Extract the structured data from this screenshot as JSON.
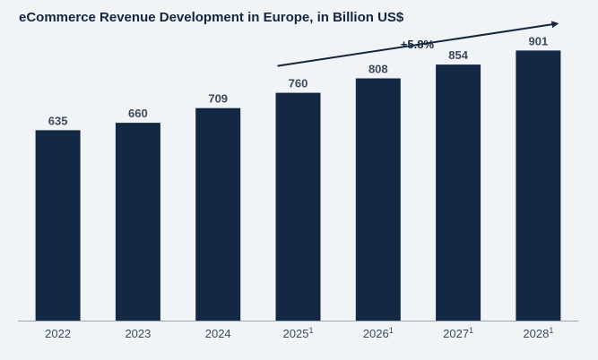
{
  "title": "eCommerce Revenue Development in Europe, in Billion US$",
  "colors": {
    "bar": "#132842",
    "text": "#3b4a5c",
    "background": "#f1f4f7"
  },
  "chart_data": {
    "type": "bar",
    "title": "eCommerce Revenue Development in Europe, in Billion US$",
    "categories": [
      "2022",
      "2023",
      "2024",
      "2025",
      "2026",
      "2027",
      "2028"
    ],
    "footnote_marks": [
      "",
      "",
      "",
      "1",
      "1",
      "1",
      "1"
    ],
    "values": [
      635,
      660,
      709,
      760,
      808,
      854,
      901
    ],
    "value_labels": [
      "635",
      "660",
      "709",
      "760",
      "808",
      "854",
      "901"
    ],
    "ylim": [
      0,
      950
    ],
    "grid": false,
    "annotation": {
      "text": "+5.8%",
      "from_category": "2025",
      "to_category": "2028"
    }
  }
}
